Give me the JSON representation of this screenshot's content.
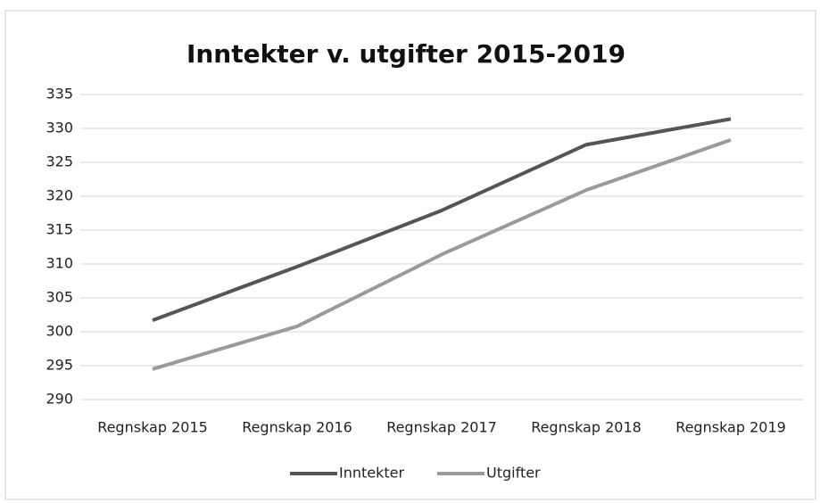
{
  "chart_data": {
    "type": "line",
    "title": "Inntekter v. utgifter 2015-2019",
    "categories": [
      "Regnskap 2015",
      "Regnskap 2016",
      "Regnskap 2017",
      "Regnskap 2018",
      "Regnskap 2019"
    ],
    "series": [
      {
        "name": "Inntekter",
        "color": "#555555",
        "values": [
          301.7,
          309.6,
          317.9,
          327.6,
          331.4
        ]
      },
      {
        "name": "Utgifter",
        "color": "#9a9a9a",
        "values": [
          294.5,
          300.8,
          311.4,
          320.9,
          328.3
        ]
      }
    ],
    "ylim": [
      290,
      335
    ],
    "yticks": [
      290,
      295,
      300,
      305,
      310,
      315,
      320,
      325,
      330,
      335
    ],
    "grid": true,
    "legend": "bottom"
  }
}
